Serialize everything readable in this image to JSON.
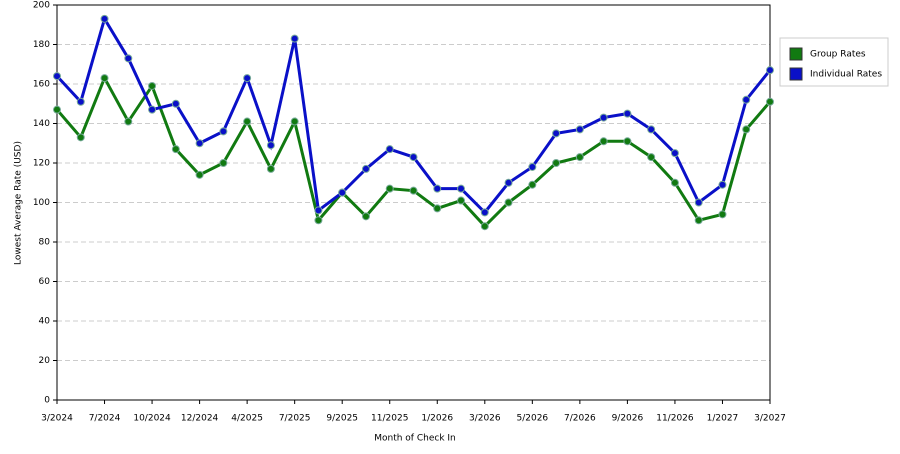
{
  "chart_data": {
    "type": "line",
    "x_label": "Month of Check In",
    "y_label": "Lowest Average Rate (USD)",
    "categories": [
      "3/2024",
      null,
      "7/2024",
      null,
      "10/2024",
      null,
      "12/2024",
      null,
      "4/2025",
      null,
      "7/2025",
      null,
      "9/2025",
      null,
      "11/2025",
      null,
      "1/2026",
      null,
      "3/2026",
      null,
      "5/2026",
      null,
      "7/2026",
      null,
      "9/2026",
      null,
      "11/2026",
      null,
      "1/2027",
      null,
      "3/2027"
    ],
    "series": [
      {
        "name": "Group Rates",
        "color": "#117a11",
        "values": [
          147,
          133,
          163,
          141,
          159,
          127,
          114,
          120,
          141,
          117,
          141,
          91,
          105,
          93,
          107,
          106,
          97,
          101,
          88,
          100,
          109,
          120,
          123,
          131,
          131,
          123,
          110,
          91,
          94,
          137,
          151
        ]
      },
      {
        "name": "Individual Rates",
        "color": "#0a10c8",
        "values": [
          164,
          151,
          193,
          173,
          147,
          150,
          130,
          136,
          163,
          129,
          183,
          96,
          105,
          117,
          127,
          123,
          107,
          107,
          95,
          110,
          118,
          135,
          137,
          143,
          145,
          137,
          125,
          100,
          109,
          152,
          167
        ]
      }
    ],
    "ylim": [
      0,
      200
    ],
    "yticks": [
      0,
      20,
      40,
      60,
      80,
      100,
      120,
      140,
      160,
      180,
      200
    ],
    "grid": true,
    "legend": "right"
  }
}
